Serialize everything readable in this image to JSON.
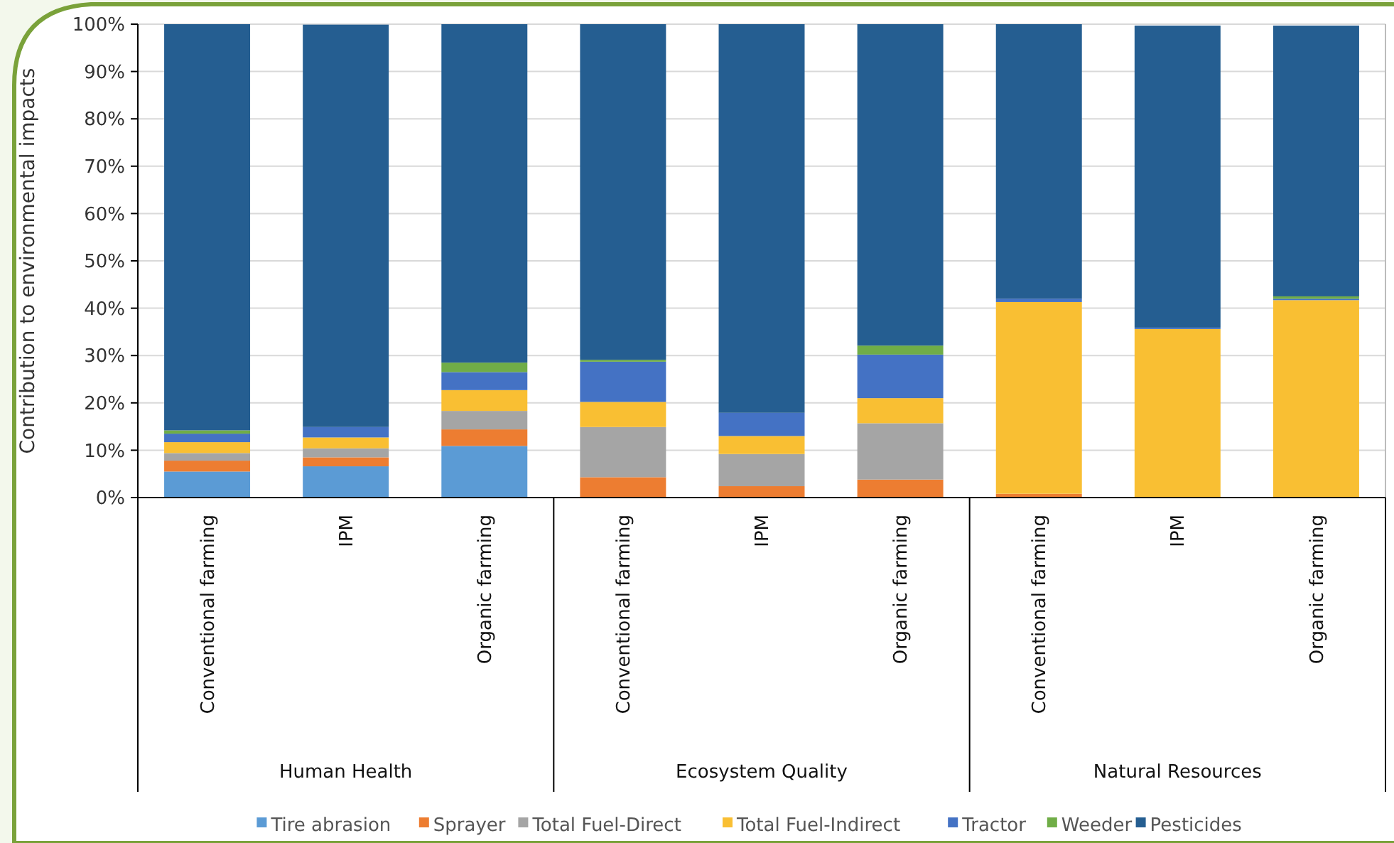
{
  "chart_data": {
    "type": "bar",
    "stacked": true,
    "ylabel": "Contribution to environmental impacts",
    "categories": [
      "Conventional farming",
      "IPM",
      "Organic farming",
      "Conventional farming",
      "IPM",
      "Organic farming",
      "Conventional farming",
      "IPM",
      "Organic farming"
    ],
    "annotations": [
      "Human Health",
      "Ecosystem Quality",
      "Natural Resources"
    ],
    "ylim": [
      0,
      100
    ],
    "yticks": [
      {
        "value": 0,
        "label": "0%"
      },
      {
        "value": 10,
        "label": "10%"
      },
      {
        "value": 20,
        "label": "20%"
      },
      {
        "value": 30,
        "label": "30%"
      },
      {
        "value": 40,
        "label": "40%"
      },
      {
        "value": 50,
        "label": "50%"
      },
      {
        "value": 60,
        "label": "60%"
      },
      {
        "value": 70,
        "label": "70%"
      },
      {
        "value": 80,
        "label": "80%"
      },
      {
        "value": 90,
        "label": "90%"
      },
      {
        "value": 100,
        "label": "100%"
      }
    ],
    "grid": "y",
    "legend": "bottom",
    "series": [
      {
        "name": "Tire abrasion",
        "color": "#5b9bd5",
        "values": [
          5.5,
          6.6,
          10.9,
          0,
          0,
          0,
          0,
          0,
          0
        ]
      },
      {
        "name": "Sprayer",
        "color": "#ed7d31",
        "values": [
          2.3,
          1.9,
          3.5,
          4.3,
          2.4,
          3.8,
          0.8,
          null,
          null
        ]
      },
      {
        "name": "Total Fuel-Direct",
        "color": "#a5a5a5",
        "values": [
          1.6,
          1.9,
          3.9,
          10.6,
          6.8,
          11.9,
          0,
          0,
          0
        ]
      },
      {
        "name": "Total Fuel-Indirect",
        "color": "#f9bf33",
        "values": [
          2.3,
          2.3,
          4.4,
          5.3,
          3.8,
          5.3,
          40.5,
          35.6,
          41.7
        ]
      },
      {
        "name": "Tractor",
        "color": "#4472c4",
        "values": [
          1.8,
          2.2,
          3.8,
          8.5,
          4.9,
          9.2,
          0.7,
          0.3,
          0.3
        ]
      },
      {
        "name": "Weeder",
        "color": "#70ad47",
        "values": [
          0.7,
          null,
          2.0,
          0.4,
          0,
          1.9,
          0,
          0,
          0.5
        ]
      },
      {
        "name": "Pesticides",
        "color": "#255e91",
        "values": [
          85.8,
          85.0,
          71.5,
          70.9,
          82.1,
          67.9,
          58.0,
          63.8,
          57.2
        ]
      }
    ]
  }
}
